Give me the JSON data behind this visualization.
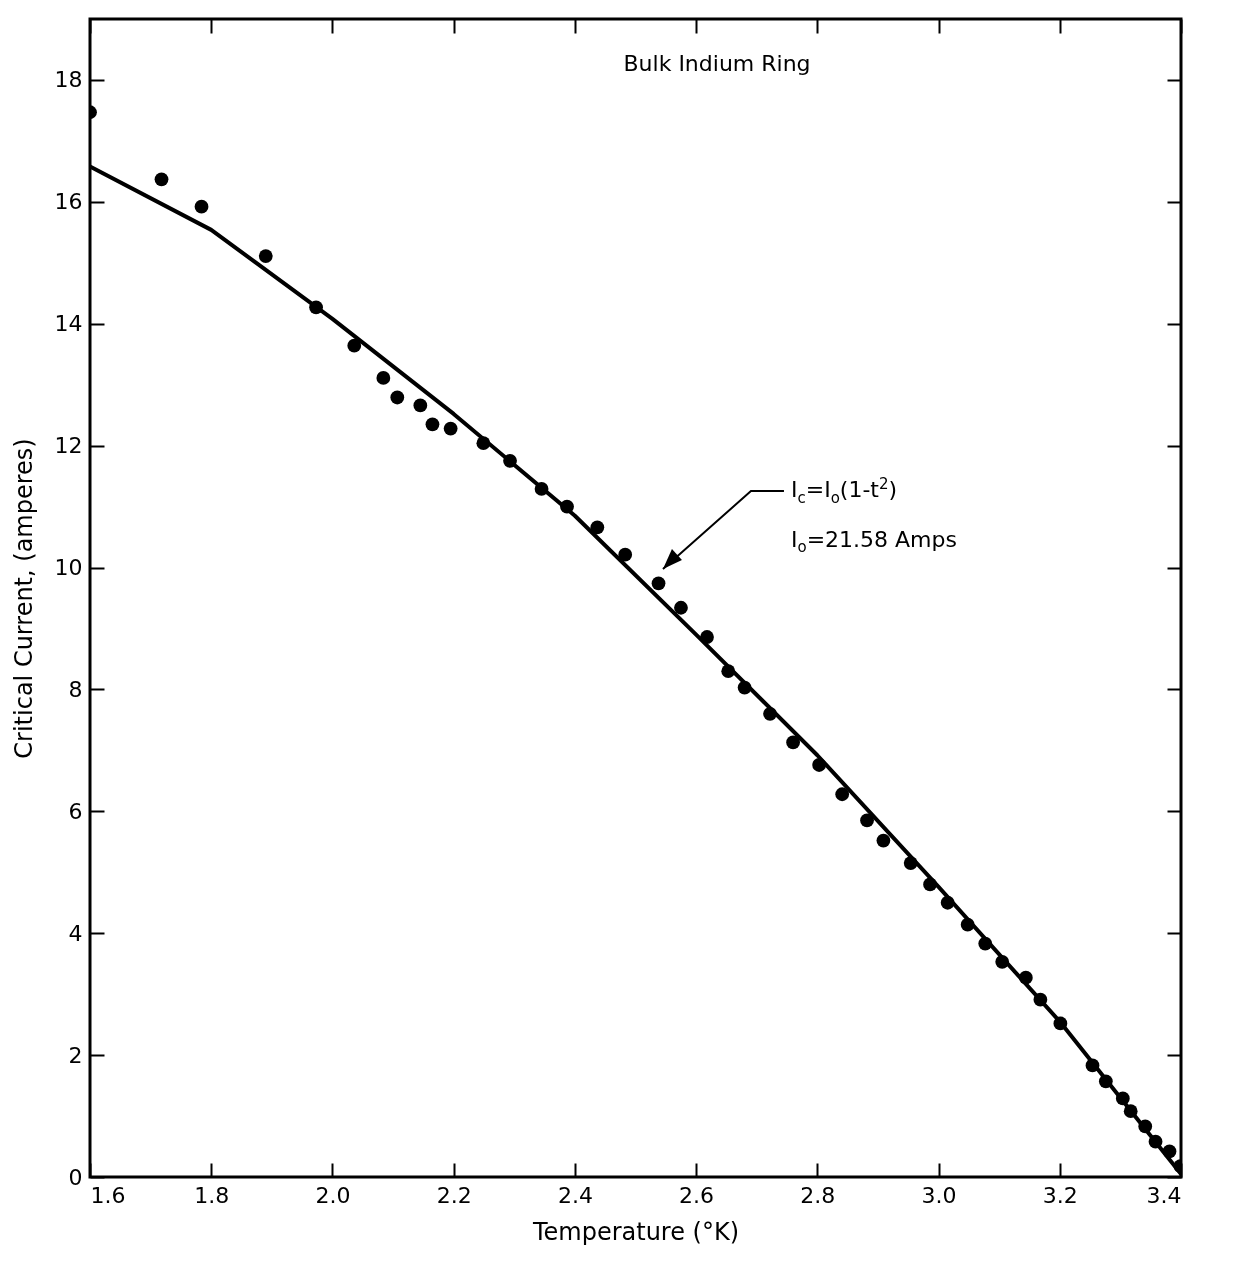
{
  "chart_data": {
    "type": "scatter",
    "xlabel": "Temperature (°K)",
    "ylabel": "Critical Current, (amperes)",
    "annotations": [
      "Bulk Indium Ring",
      "I$_{c}$=I$_{o}$(1-t$^{2}$)",
      "I$_{o}$=21.58 Amps"
    ],
    "series": [
      {
        "marker": "circle",
        "color": "#000000",
        "x": [
          1.6,
          1.718,
          1.784,
          1.89,
          1.973,
          2.036,
          2.084,
          2.107,
          2.145,
          2.165,
          2.195,
          2.249,
          2.293,
          2.345,
          2.387,
          2.437,
          2.483,
          2.538,
          2.575,
          2.618,
          2.653,
          2.68,
          2.722,
          2.76,
          2.803,
          2.841,
          2.882,
          2.909,
          2.954,
          2.986,
          3.015,
          3.048,
          3.077,
          3.105,
          3.144,
          3.168,
          3.201,
          3.254,
          3.276,
          3.304,
          3.317,
          3.341,
          3.358,
          3.381,
          3.399
        ],
        "values": [
          17.47,
          16.37,
          15.92,
          15.11,
          14.27,
          13.64,
          13.11,
          12.79,
          12.66,
          12.35,
          12.28,
          12.04,
          11.75,
          11.29,
          11.0,
          10.66,
          10.21,
          9.74,
          9.34,
          8.86,
          8.3,
          8.03,
          7.6,
          7.13,
          6.76,
          6.28,
          5.85,
          5.52,
          5.15,
          4.8,
          4.5,
          4.14,
          3.83,
          3.53,
          3.27,
          2.91,
          2.52,
          1.83,
          1.57,
          1.29,
          1.08,
          0.83,
          0.58,
          0.42,
          0.18
        ]
      },
      {
        "type": "line",
        "color": "#000000",
        "x": [
          1.6,
          1.8,
          2.0,
          2.2,
          2.4,
          2.6,
          2.8,
          3.0,
          3.2,
          3.4
        ],
        "values": [
          16.58,
          15.54,
          14.08,
          12.52,
          10.85,
          8.9,
          6.92,
          4.76,
          2.55,
          0.05
        ]
      }
    ],
    "xlim": [
      1.6,
      3.4
    ],
    "xticks": [
      1.6,
      1.8,
      {
        "value": 2,
        "label": "2.0"
      },
      2.2,
      2.4,
      2.6,
      2.8,
      {
        "value": 3,
        "label": "3.0"
      },
      3.2,
      3.4
    ],
    "ylim": [
      0,
      19
    ],
    "yticks": [
      0,
      2,
      4,
      6,
      8,
      10,
      12,
      14,
      16,
      18
    ],
    "grid": false,
    "line_style": "solid"
  }
}
